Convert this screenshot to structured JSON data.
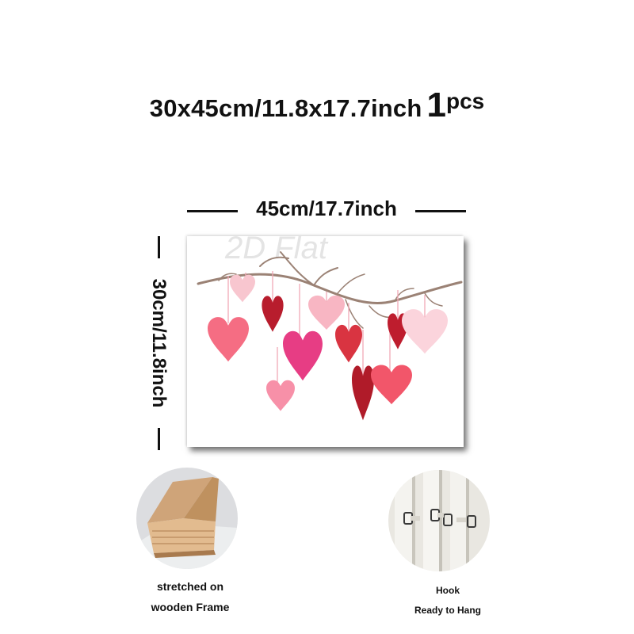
{
  "title": {
    "size": "30x45cm/11.8x17.7inch",
    "qty_number": "1",
    "qty_unit": "pcs"
  },
  "dimensions": {
    "width": "45cm/17.7inch",
    "height": "30cm/11.8inch"
  },
  "canvas": {
    "watermark": "2D Flat",
    "artwork_icon": "hanging-hearts-branch-icon"
  },
  "features": [
    {
      "icon": "wooden-frame-corner-icon",
      "lines": [
        "stretched on",
        "wooden Frame"
      ]
    },
    {
      "icon": "hanging-hook-icon",
      "lines": [
        "Hook",
        "Ready to Hang"
      ]
    }
  ],
  "colors": {
    "heart_pink": "#f56d83",
    "heart_red": "#c0202e",
    "heart_magenta": "#e73d84",
    "branch": "#9b8275"
  }
}
